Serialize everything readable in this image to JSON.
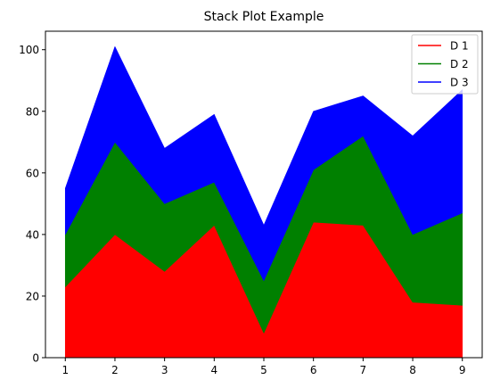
{
  "chart_data": {
    "type": "area",
    "stacked": true,
    "title": "Stack Plot Example",
    "xlabel": "",
    "ylabel": "",
    "x": [
      1,
      2,
      3,
      4,
      5,
      6,
      7,
      8,
      9
    ],
    "xlim": [
      0.6,
      9.4
    ],
    "ylim": [
      0,
      106
    ],
    "xticks": [
      "1",
      "2",
      "3",
      "4",
      "5",
      "6",
      "7",
      "8",
      "9"
    ],
    "yticks": [
      "0",
      "20",
      "40",
      "60",
      "80",
      "100"
    ],
    "grid": false,
    "legend_position": "upper right",
    "series": [
      {
        "name": "D 1",
        "color": "#ff0000",
        "values": [
          23,
          40,
          28,
          43,
          8,
          44,
          43,
          18,
          17
        ]
      },
      {
        "name": "D 2",
        "color": "#008000",
        "values": [
          17,
          30,
          22,
          14,
          17,
          17,
          29,
          22,
          30
        ]
      },
      {
        "name": "D 3",
        "color": "#0000ff",
        "values": [
          15,
          31,
          18,
          22,
          18,
          19,
          13,
          32,
          40
        ]
      }
    ]
  }
}
